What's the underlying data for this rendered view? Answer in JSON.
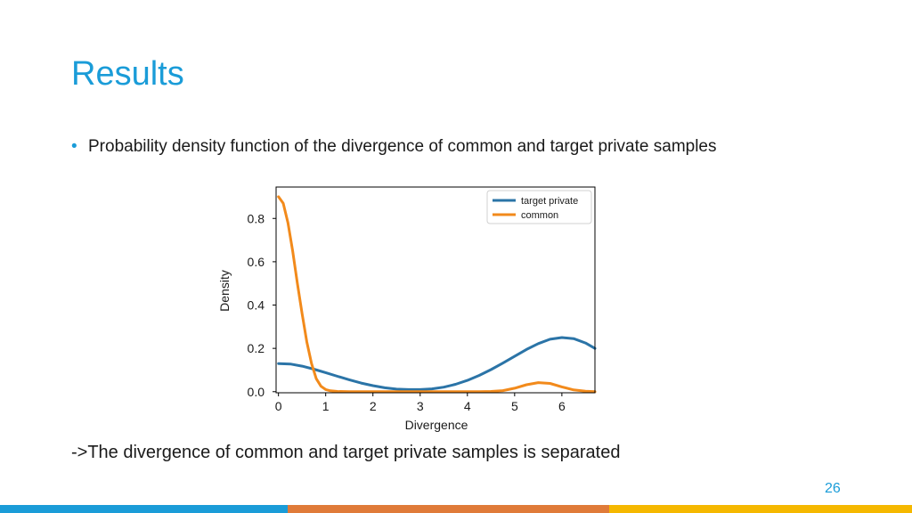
{
  "slide": {
    "title": "Results",
    "bullet": "Probability density function of the divergence of common and target private samples",
    "conclusion": "->The divergence of common and target private samples is separated",
    "page_number": "26"
  },
  "footer": {
    "colors": [
      "#1a9cd8",
      "#e07b39",
      "#f5b800"
    ]
  },
  "chart_data": {
    "type": "line",
    "title": "",
    "xlabel": "Divergence",
    "ylabel": "Density",
    "xlim": [
      -0.05,
      6.7
    ],
    "ylim": [
      -0.005,
      0.945
    ],
    "xticks": [
      0,
      1,
      2,
      3,
      4,
      5,
      6
    ],
    "yticks": [
      0.0,
      0.2,
      0.4,
      0.6,
      0.8
    ],
    "xtick_labels": [
      "0",
      "1",
      "2",
      "3",
      "4",
      "5",
      "6"
    ],
    "ytick_labels": [
      "0.0",
      "0.2",
      "0.4",
      "0.6",
      "0.8"
    ],
    "grid": false,
    "legend_position": "top-right",
    "series": [
      {
        "name": "target private",
        "color": "#2b74a7",
        "x": [
          0,
          0.25,
          0.5,
          0.75,
          1.0,
          1.25,
          1.5,
          1.75,
          2.0,
          2.25,
          2.5,
          2.75,
          3.0,
          3.25,
          3.5,
          3.75,
          4.0,
          4.25,
          4.5,
          4.75,
          5.0,
          5.25,
          5.5,
          5.75,
          6.0,
          6.25,
          6.5,
          6.7
        ],
        "y": [
          0.13,
          0.128,
          0.118,
          0.104,
          0.088,
          0.071,
          0.055,
          0.04,
          0.028,
          0.018,
          0.012,
          0.01,
          0.01,
          0.013,
          0.021,
          0.034,
          0.052,
          0.075,
          0.102,
          0.132,
          0.163,
          0.195,
          0.222,
          0.242,
          0.25,
          0.245,
          0.225,
          0.2
        ]
      },
      {
        "name": "common",
        "color": "#f28a1b",
        "x": [
          0,
          0.1,
          0.2,
          0.3,
          0.4,
          0.5,
          0.6,
          0.7,
          0.8,
          0.9,
          1.0,
          1.1,
          1.25,
          1.5,
          2.0,
          2.5,
          3.0,
          3.5,
          4.0,
          4.25,
          4.5,
          4.75,
          5.0,
          5.25,
          5.5,
          5.75,
          6.0,
          6.25,
          6.5,
          6.7
        ],
        "y": [
          0.9,
          0.87,
          0.78,
          0.65,
          0.5,
          0.36,
          0.23,
          0.13,
          0.06,
          0.025,
          0.01,
          0.004,
          0.001,
          0.0,
          0.0,
          0.0,
          0.0,
          0.0,
          0.0,
          0.0,
          0.001,
          0.005,
          0.016,
          0.032,
          0.042,
          0.038,
          0.022,
          0.008,
          0.002,
          0.0
        ]
      }
    ]
  }
}
